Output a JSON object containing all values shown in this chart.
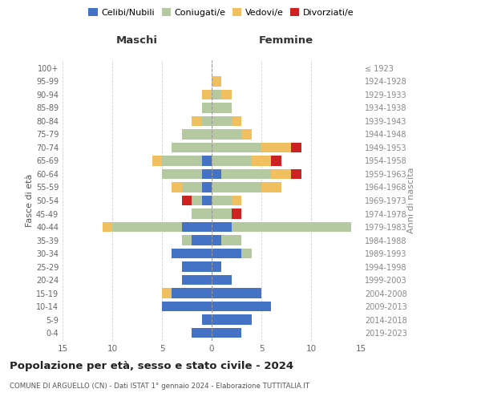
{
  "age_groups": [
    "0-4",
    "5-9",
    "10-14",
    "15-19",
    "20-24",
    "25-29",
    "30-34",
    "35-39",
    "40-44",
    "45-49",
    "50-54",
    "55-59",
    "60-64",
    "65-69",
    "70-74",
    "75-79",
    "80-84",
    "85-89",
    "90-94",
    "95-99",
    "100+"
  ],
  "birth_years": [
    "2019-2023",
    "2014-2018",
    "2009-2013",
    "2004-2008",
    "1999-2003",
    "1994-1998",
    "1989-1993",
    "1984-1988",
    "1979-1983",
    "1974-1978",
    "1969-1973",
    "1964-1968",
    "1959-1963",
    "1954-1958",
    "1949-1953",
    "1944-1948",
    "1939-1943",
    "1934-1938",
    "1929-1933",
    "1924-1928",
    "≤ 1923"
  ],
  "colors": {
    "celibi": "#4472c4",
    "coniugati": "#b5c9a0",
    "vedovi": "#f0c060",
    "divorziati": "#cc2222"
  },
  "maschi": {
    "celibi": [
      2,
      1,
      5,
      4,
      3,
      3,
      4,
      2,
      3,
      0,
      1,
      1,
      1,
      1,
      0,
      0,
      0,
      0,
      0,
      0,
      0
    ],
    "coniugati": [
      0,
      0,
      0,
      0,
      0,
      0,
      0,
      1,
      7,
      2,
      1,
      2,
      4,
      4,
      4,
      3,
      1,
      1,
      0,
      0,
      0
    ],
    "vedovi": [
      0,
      0,
      0,
      1,
      0,
      0,
      0,
      0,
      1,
      0,
      0,
      1,
      0,
      1,
      0,
      0,
      1,
      0,
      1,
      0,
      0
    ],
    "divorziati": [
      0,
      0,
      0,
      0,
      0,
      0,
      0,
      0,
      0,
      0,
      1,
      0,
      0,
      0,
      0,
      0,
      0,
      0,
      0,
      0,
      0
    ]
  },
  "femmine": {
    "celibi": [
      3,
      4,
      6,
      5,
      2,
      1,
      3,
      1,
      2,
      0,
      0,
      0,
      1,
      0,
      0,
      0,
      0,
      0,
      0,
      0,
      0
    ],
    "coniugati": [
      0,
      0,
      0,
      0,
      0,
      0,
      1,
      2,
      12,
      2,
      2,
      5,
      5,
      4,
      5,
      3,
      2,
      2,
      1,
      0,
      0
    ],
    "vedovi": [
      0,
      0,
      0,
      0,
      0,
      0,
      0,
      0,
      0,
      0,
      1,
      2,
      2,
      2,
      3,
      1,
      1,
      0,
      1,
      1,
      0
    ],
    "divorziati": [
      0,
      0,
      0,
      0,
      0,
      0,
      0,
      0,
      0,
      1,
      0,
      0,
      1,
      1,
      1,
      0,
      0,
      0,
      0,
      0,
      0
    ]
  },
  "title": "Popolazione per età, sesso e stato civile - 2024",
  "subtitle": "COMUNE DI ARGUELLO (CN) - Dati ISTAT 1° gennaio 2024 - Elaborazione TUTTITALIA.IT",
  "xlabel_left": "Maschi",
  "xlabel_right": "Femmine",
  "ylabel_left": "Fasce di età",
  "ylabel_right": "Anni di nascita",
  "xlim": 15,
  "legend_labels": [
    "Celibi/Nubili",
    "Coniugati/e",
    "Vedovi/e",
    "Divorziati/e"
  ],
  "bg_color": "#ffffff",
  "grid_color": "#cccccc"
}
